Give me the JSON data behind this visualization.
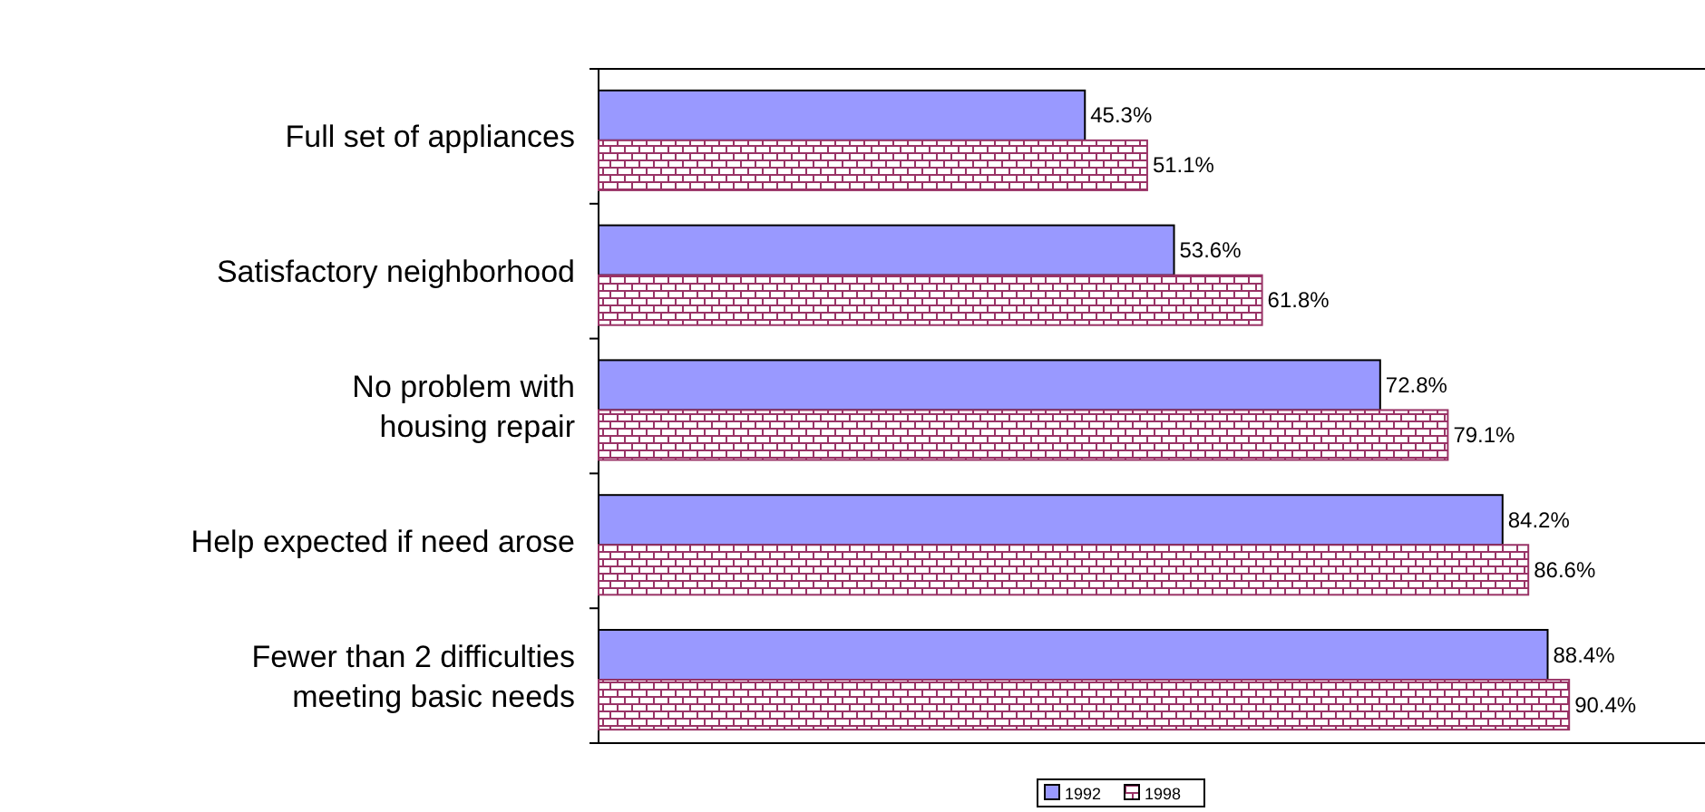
{
  "chart_data": {
    "type": "bar",
    "orientation": "horizontal",
    "categories": [
      "Full set of appliances",
      "Satisfactory neighborhood",
      "No problem with\nhousing repair",
      "Help expected if need arose",
      "Fewer than 2 difficulties\nmeeting basic needs"
    ],
    "series": [
      {
        "name": "1992",
        "color": "#9999ff",
        "values": [
          45.3,
          53.6,
          72.8,
          84.2,
          88.4
        ],
        "value_labels": [
          "45.3%",
          "53.6%",
          "72.8%",
          "84.2%",
          "88.4%"
        ]
      },
      {
        "name": "1998",
        "color": "#993366",
        "values": [
          51.1,
          61.8,
          79.1,
          86.6,
          90.4
        ],
        "value_labels": [
          "51.1%",
          "61.8%",
          "79.1%",
          "86.6%",
          "90.4%"
        ]
      }
    ],
    "legend": "bottom"
  }
}
